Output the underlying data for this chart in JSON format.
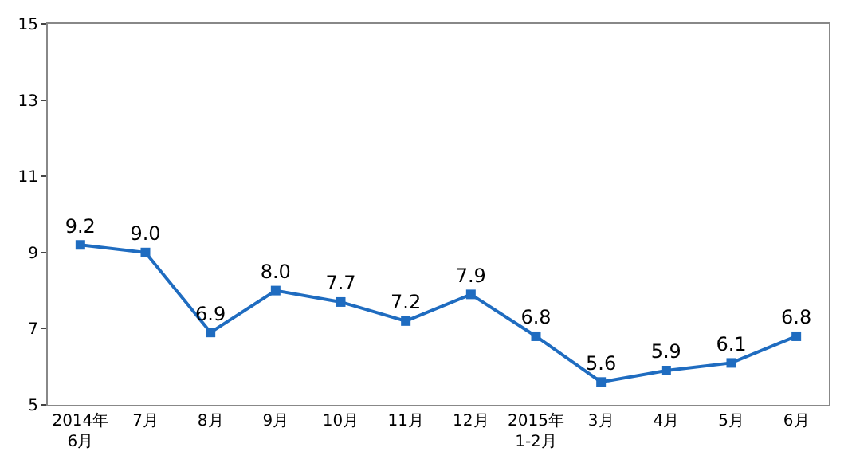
{
  "chart_data": {
    "type": "line",
    "categories": [
      "2014年\n6月",
      "7月",
      "8月",
      "9月",
      "10月",
      "11月",
      "12月",
      "2015年\n1-2月",
      "3月",
      "4月",
      "5月",
      "6月"
    ],
    "values": [
      9.2,
      9.0,
      6.9,
      8.0,
      7.7,
      7.2,
      7.9,
      6.8,
      5.6,
      5.9,
      6.1,
      6.8
    ],
    "color": "#1f6cc0",
    "value_labels": [
      "9.2",
      "9.0",
      "6.9",
      "8.0",
      "7.7",
      "7.2",
      "7.9",
      "6.8",
      "5.6",
      "5.9",
      "6.1",
      "6.8"
    ],
    "marker": "square",
    "line_style": "solid",
    "ylim": [
      5,
      15
    ],
    "yticks": [
      5,
      7,
      9,
      11,
      13,
      15
    ]
  }
}
